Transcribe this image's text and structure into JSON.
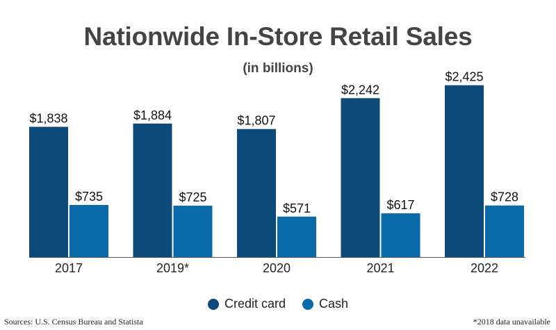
{
  "title": "Nationwide In-Store Retail Sales",
  "subtitle": "(in billions)",
  "colors": {
    "credit": "#0d4a7a",
    "cash": "#0b6aaa",
    "baseline": "#555555"
  },
  "chart_data": {
    "type": "bar",
    "categories": [
      "2017",
      "2019*",
      "2020",
      "2021",
      "2022"
    ],
    "series": [
      {
        "name": "Credit card",
        "values": [
          1838,
          1884,
          1807,
          2242,
          2425
        ],
        "labels": [
          "$1,838",
          "$1,884",
          "$1,807",
          "$2,242",
          "$2,425"
        ]
      },
      {
        "name": "Cash",
        "values": [
          735,
          725,
          571,
          617,
          728
        ],
        "labels": [
          "$735",
          "$725",
          "$571",
          "$617",
          "$728"
        ]
      }
    ],
    "title": "Nationwide In-Store Retail Sales",
    "subtitle": "(in billions)",
    "ylim": [
      0,
      2500
    ],
    "grid": false,
    "legend_position": "bottom"
  },
  "legend": {
    "credit_label": "Credit card",
    "cash_label": "Cash"
  },
  "footer": {
    "source": "Sources: U.S. Census Bureau and Statista",
    "note": "*2018 data unavailable"
  }
}
